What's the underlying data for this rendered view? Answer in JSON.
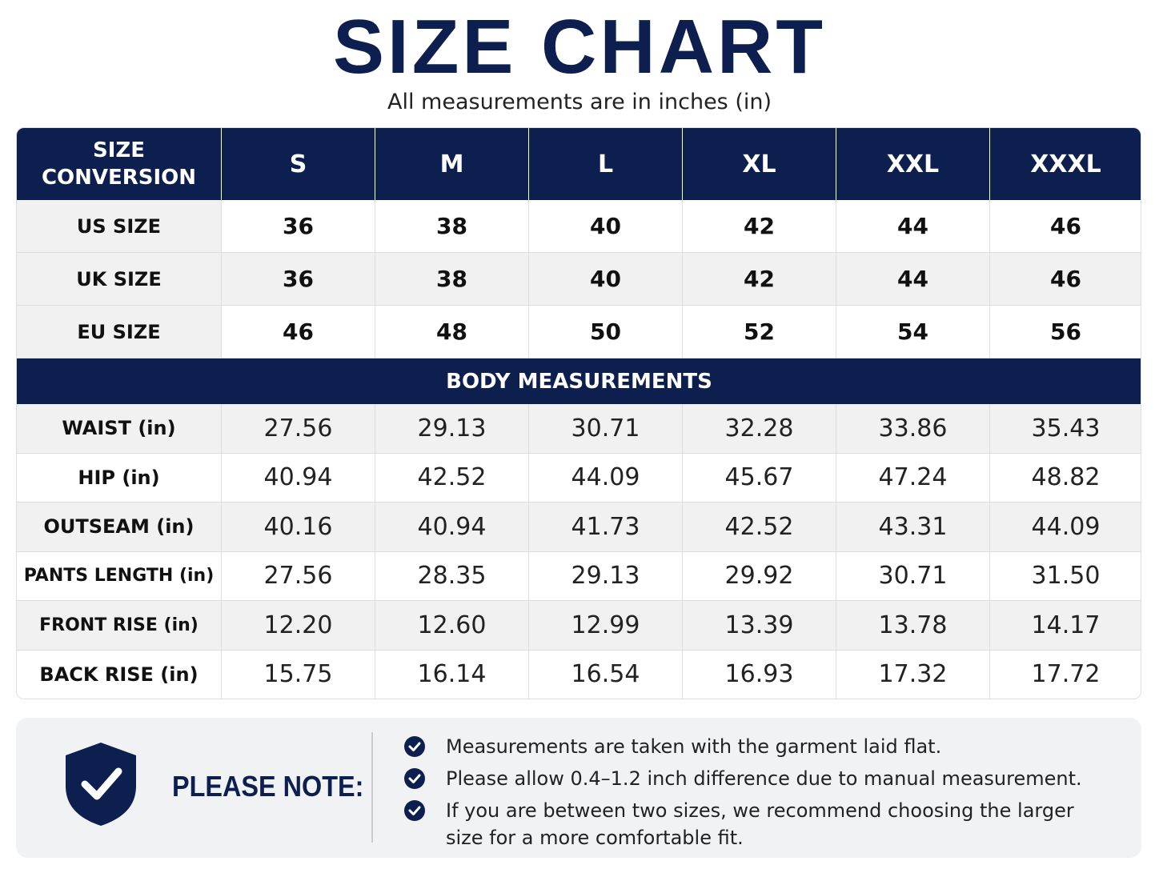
{
  "header": {
    "title": "SIZE CHART",
    "subtitle": "All measurements are in inches (in)"
  },
  "table": {
    "columns": [
      "SIZE CONVERSION",
      "S",
      "M",
      "L",
      "XL",
      "XXL",
      "XXXL"
    ],
    "conversion_rows": [
      [
        "US SIZE",
        "36",
        "38",
        "40",
        "42",
        "44",
        "46"
      ],
      [
        "UK SIZE",
        "36",
        "38",
        "40",
        "42",
        "44",
        "46"
      ],
      [
        "EU SIZE",
        "46",
        "48",
        "50",
        "52",
        "54",
        "56"
      ]
    ],
    "section_title": "BODY MEASUREMENTS",
    "measurement_rows": [
      [
        "WAIST (in)",
        "27.56",
        "29.13",
        "30.71",
        "32.28",
        "33.86",
        "35.43"
      ],
      [
        "HIP (in)",
        "40.94",
        "42.52",
        "44.09",
        "45.67",
        "47.24",
        "48.82"
      ],
      [
        "OUTSEAM (in)",
        "40.16",
        "40.94",
        "41.73",
        "42.52",
        "43.31",
        "44.09"
      ],
      [
        "PANTS LENGTH (in)",
        "27.56",
        "28.35",
        "29.13",
        "29.92",
        "30.71",
        "31.50"
      ],
      [
        "FRONT RISE (in)",
        "12.20",
        "12.60",
        "12.99",
        "13.39",
        "13.78",
        "14.17"
      ],
      [
        "BACK RISE (in)",
        "15.75",
        "16.14",
        "16.54",
        "16.93",
        "17.32",
        "17.72"
      ]
    ]
  },
  "note": {
    "title": "PLEASE NOTE:",
    "items": [
      "Measurements are taken with the garment laid flat.",
      "Please allow 0.4–1.2 inch difference due to manual measurement.",
      "If you are between two sizes, we recommend choosing the larger size for a more comfortable fit."
    ]
  }
}
